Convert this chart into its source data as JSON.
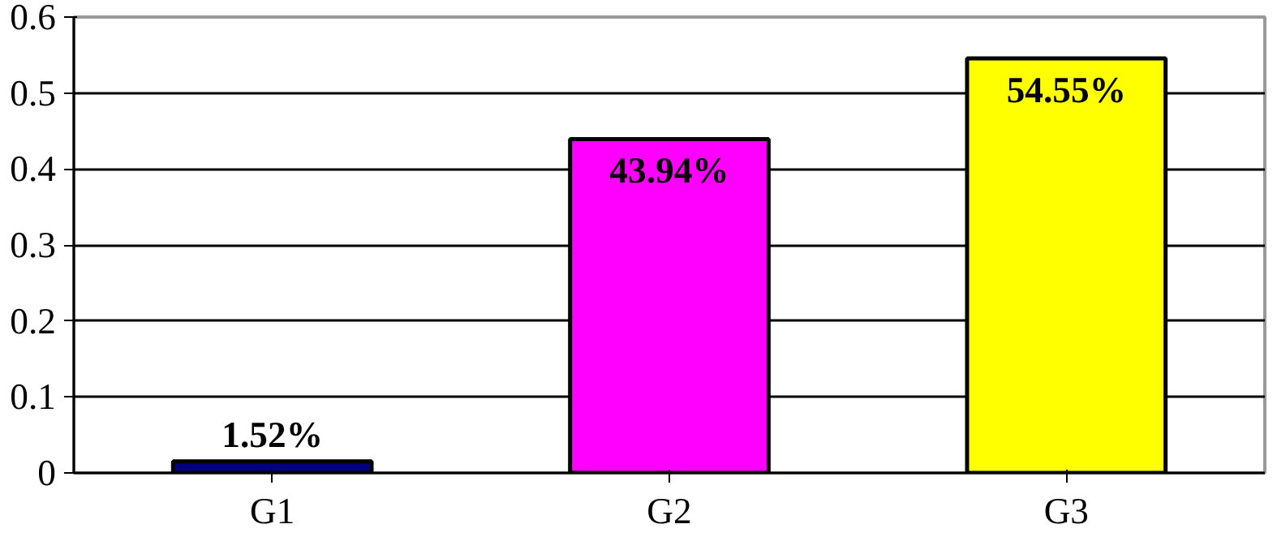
{
  "chart_data": {
    "type": "bar",
    "categories": [
      "G1",
      "G2",
      "G3"
    ],
    "values": [
      0.0152,
      0.4394,
      0.5455
    ],
    "colors": [
      "#000080",
      "#ff00ff",
      "#ffff00"
    ],
    "value_labels": [
      "1.52%",
      "43.94%",
      "54.55%"
    ],
    "ylim": [
      0,
      0.6
    ],
    "yticks": [
      0,
      0.1,
      0.2,
      0.3,
      0.4,
      0.5,
      0.6
    ],
    "grid": "y"
  }
}
